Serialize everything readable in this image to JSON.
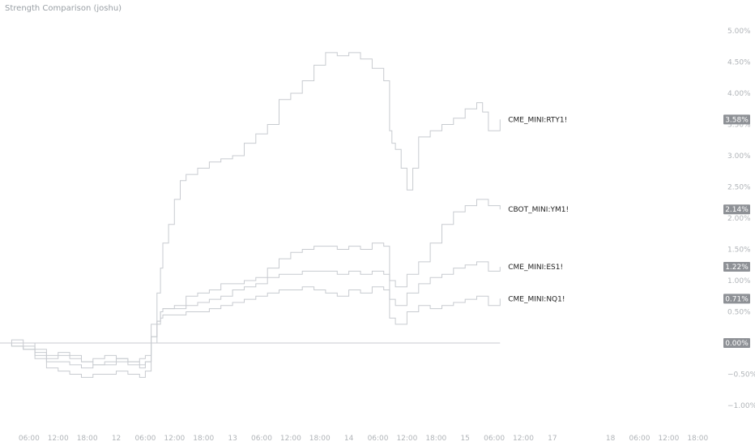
{
  "header": {
    "title": "Strength Comparison (joshu)"
  },
  "chart_data": {
    "type": "line",
    "title": "Strength Comparison (joshu)",
    "ylim": [
      -1.0,
      5.0
    ],
    "y_ticks": [
      "5.00%",
      "4.50%",
      "4.00%",
      "3.50%",
      "3.00%",
      "2.50%",
      "2.00%",
      "1.50%",
      "1.00%",
      "0.50%",
      "0.00%",
      "−0.50%",
      "−1.00%"
    ],
    "y_tick_values": [
      5.0,
      4.5,
      4.0,
      3.5,
      3.0,
      2.5,
      2.0,
      1.5,
      1.0,
      0.5,
      0.0,
      -0.5,
      -1.0
    ],
    "x_ticks": [
      "06:00",
      "12:00",
      "18:00",
      "12",
      "06:00",
      "12:00",
      "18:00",
      "13",
      "06:00",
      "12:00",
      "18:00",
      "14",
      "06:00",
      "12:00",
      "18:00",
      "15",
      "06:00",
      "12:00",
      "17",
      "18",
      "06:00",
      "12:00",
      "18:00"
    ],
    "x_tick_values": [
      0.25,
      0.5,
      0.75,
      1.0,
      1.25,
      1.5,
      1.75,
      2.0,
      2.25,
      2.5,
      2.75,
      3.0,
      3.25,
      3.5,
      3.75,
      4.0,
      4.25,
      4.5,
      4.75,
      5.25,
      5.5,
      5.75,
      6.0
    ],
    "x_range": [
      0.0,
      6.2
    ],
    "zero_line": true,
    "grid": false,
    "colors": {
      "line": "#c8cbd0",
      "badge": "#8e9196",
      "label": "#1e1e1e",
      "axis_text": "#b0b4b8"
    },
    "series": [
      {
        "name": "CME_MINI:RTY1!",
        "last_value_label": "3.58%",
        "last_value": 3.58,
        "x": [
          0.0,
          0.1,
          0.2,
          0.3,
          0.4,
          0.5,
          0.6,
          0.7,
          0.8,
          0.9,
          1.0,
          1.1,
          1.2,
          1.25,
          1.3,
          1.35,
          1.38,
          1.4,
          1.45,
          1.5,
          1.55,
          1.6,
          1.7,
          1.8,
          1.9,
          2.0,
          2.1,
          2.2,
          2.3,
          2.4,
          2.5,
          2.6,
          2.7,
          2.8,
          2.9,
          3.0,
          3.1,
          3.2,
          3.3,
          3.35,
          3.37,
          3.4,
          3.45,
          3.5,
          3.55,
          3.6,
          3.7,
          3.8,
          3.9,
          4.0,
          4.1,
          4.15,
          4.2,
          4.3
        ],
        "y": [
          0.0,
          0.05,
          0.0,
          -0.1,
          -0.2,
          -0.15,
          -0.2,
          -0.3,
          -0.35,
          -0.3,
          -0.25,
          -0.3,
          -0.35,
          -0.3,
          0.3,
          0.8,
          1.2,
          1.6,
          1.9,
          2.3,
          2.6,
          2.7,
          2.8,
          2.9,
          2.95,
          3.0,
          3.2,
          3.35,
          3.5,
          3.9,
          4.0,
          4.2,
          4.45,
          4.65,
          4.6,
          4.65,
          4.55,
          4.4,
          4.2,
          3.4,
          3.2,
          3.1,
          2.8,
          2.45,
          2.8,
          3.3,
          3.4,
          3.5,
          3.6,
          3.75,
          3.85,
          3.7,
          3.4,
          3.58
        ]
      },
      {
        "name": "CBOT_MINI:YM1!",
        "last_value_label": "2.14%",
        "last_value": 2.14,
        "x": [
          0.0,
          0.1,
          0.2,
          0.3,
          0.4,
          0.5,
          0.6,
          0.7,
          0.8,
          0.9,
          1.0,
          1.1,
          1.2,
          1.25,
          1.3,
          1.35,
          1.38,
          1.4,
          1.5,
          1.6,
          1.7,
          1.8,
          1.9,
          2.0,
          2.1,
          2.2,
          2.3,
          2.4,
          2.5,
          2.6,
          2.7,
          2.8,
          2.9,
          3.0,
          3.1,
          3.2,
          3.3,
          3.35,
          3.4,
          3.5,
          3.6,
          3.7,
          3.8,
          3.9,
          4.0,
          4.1,
          4.2,
          4.3
        ],
        "y": [
          0.0,
          0.0,
          -0.05,
          -0.15,
          -0.25,
          -0.2,
          -0.25,
          -0.3,
          -0.25,
          -0.2,
          -0.25,
          -0.3,
          -0.25,
          -0.2,
          0.1,
          0.35,
          0.5,
          0.55,
          0.6,
          0.75,
          0.8,
          0.85,
          0.95,
          0.95,
          1.0,
          1.05,
          1.2,
          1.35,
          1.45,
          1.5,
          1.55,
          1.55,
          1.5,
          1.55,
          1.5,
          1.6,
          1.55,
          1.0,
          0.9,
          1.1,
          1.3,
          1.6,
          1.9,
          2.1,
          2.2,
          2.3,
          2.2,
          2.14
        ]
      },
      {
        "name": "CME_MINI:ES1!",
        "last_value_label": "1.22%",
        "last_value": 1.22,
        "x": [
          0.0,
          0.1,
          0.2,
          0.3,
          0.4,
          0.5,
          0.6,
          0.7,
          0.8,
          0.9,
          1.0,
          1.1,
          1.2,
          1.25,
          1.3,
          1.35,
          1.38,
          1.4,
          1.5,
          1.6,
          1.7,
          1.8,
          1.9,
          2.0,
          2.1,
          2.2,
          2.3,
          2.4,
          2.5,
          2.6,
          2.7,
          2.8,
          2.9,
          3.0,
          3.1,
          3.2,
          3.3,
          3.35,
          3.4,
          3.5,
          3.6,
          3.7,
          3.8,
          3.9,
          4.0,
          4.1,
          4.2,
          4.3
        ],
        "y": [
          0.0,
          -0.05,
          -0.1,
          -0.2,
          -0.3,
          -0.3,
          -0.35,
          -0.4,
          -0.35,
          -0.35,
          -0.3,
          -0.35,
          -0.4,
          -0.3,
          0.1,
          0.35,
          0.5,
          0.55,
          0.55,
          0.6,
          0.65,
          0.7,
          0.75,
          0.85,
          0.9,
          0.95,
          1.05,
          1.1,
          1.1,
          1.15,
          1.15,
          1.15,
          1.1,
          1.15,
          1.1,
          1.15,
          1.1,
          0.7,
          0.6,
          0.8,
          0.95,
          1.05,
          1.1,
          1.2,
          1.25,
          1.3,
          1.15,
          1.22
        ]
      },
      {
        "name": "CME_MINI:NQ1!",
        "last_value_label": "0.71%",
        "last_value": 0.71,
        "x": [
          0.0,
          0.1,
          0.2,
          0.3,
          0.4,
          0.5,
          0.6,
          0.7,
          0.8,
          0.9,
          1.0,
          1.1,
          1.2,
          1.25,
          1.3,
          1.35,
          1.38,
          1.4,
          1.5,
          1.6,
          1.7,
          1.8,
          1.9,
          2.0,
          2.1,
          2.2,
          2.3,
          2.4,
          2.5,
          2.6,
          2.7,
          2.8,
          2.9,
          3.0,
          3.1,
          3.2,
          3.3,
          3.35,
          3.4,
          3.5,
          3.6,
          3.7,
          3.8,
          3.9,
          4.0,
          4.1,
          4.2,
          4.3
        ],
        "y": [
          0.0,
          -0.05,
          -0.1,
          -0.25,
          -0.4,
          -0.45,
          -0.5,
          -0.55,
          -0.5,
          -0.5,
          -0.45,
          -0.5,
          -0.55,
          -0.45,
          0.0,
          0.3,
          0.4,
          0.45,
          0.45,
          0.5,
          0.5,
          0.55,
          0.6,
          0.65,
          0.7,
          0.75,
          0.8,
          0.85,
          0.85,
          0.9,
          0.85,
          0.8,
          0.75,
          0.85,
          0.8,
          0.9,
          0.85,
          0.4,
          0.3,
          0.5,
          0.6,
          0.55,
          0.6,
          0.65,
          0.7,
          0.75,
          0.6,
          0.71
        ]
      }
    ]
  }
}
